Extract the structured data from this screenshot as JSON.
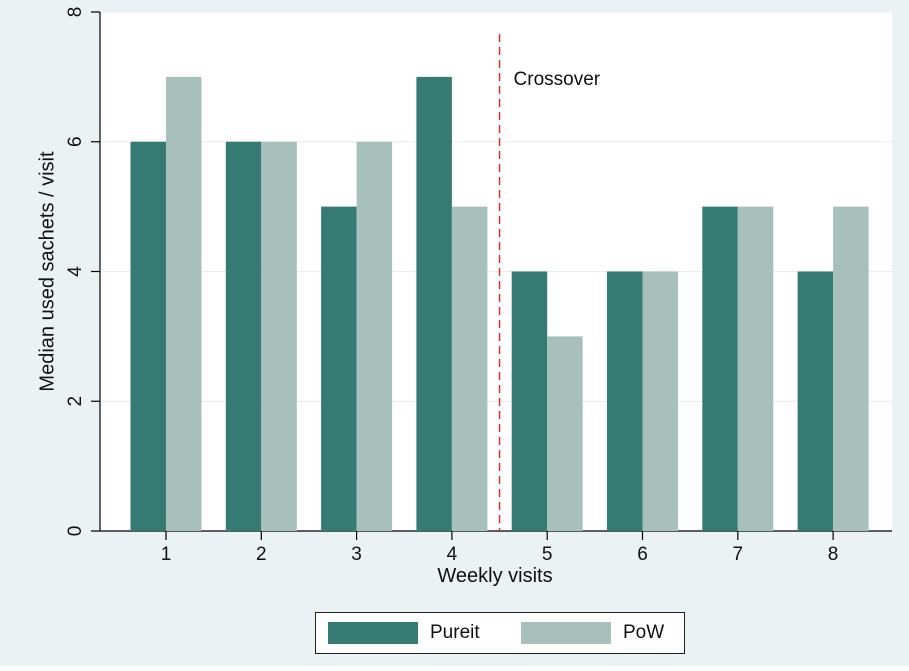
{
  "chart_data": {
    "type": "bar",
    "categories": [
      "1",
      "2",
      "3",
      "4",
      "5",
      "6",
      "7",
      "8"
    ],
    "series": [
      {
        "name": "Pureit",
        "values": [
          6,
          6,
          5,
          7,
          4,
          4,
          5,
          4
        ],
        "color": "#367b73"
      },
      {
        "name": "PoW",
        "values": [
          7,
          6,
          6,
          5,
          3,
          4,
          5,
          5
        ],
        "color": "#a7c0bb"
      }
    ],
    "xlabel": "Weekly visits",
    "ylabel": "Median used sachets / visit",
    "ylim": [
      0,
      8
    ],
    "yticks": [
      "0",
      "2",
      "4",
      "6",
      "8"
    ],
    "grid": true,
    "legend_position": "bottom",
    "annotation": {
      "text": "Crossover",
      "between": [
        "4",
        "5"
      ],
      "line_color": "#e0251c",
      "line_style": "dashed"
    },
    "background_color": "#eaf2f3"
  }
}
